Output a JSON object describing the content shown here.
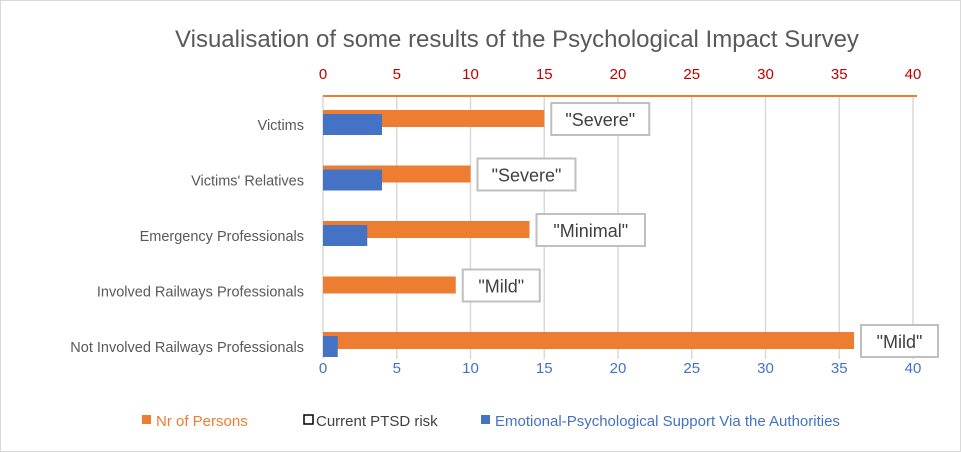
{
  "chart_data": {
    "type": "bar",
    "orientation": "horizontal",
    "title": "Visualisation of some results of the Psychological Impact Survey",
    "categories": [
      "Victims",
      "Victims' Relatives",
      "Emergency Professionals",
      "Involved Railways Professionals",
      "Not Involved Railways Professionals"
    ],
    "series": [
      {
        "name": "Nr of Persons",
        "color": "#ED7D31",
        "axis": "top",
        "values": [
          15,
          10,
          14,
          9,
          36
        ]
      },
      {
        "name": "Current PTSD risk",
        "color": "#000000",
        "legend_style": "outline",
        "labels": [
          "\"Severe\"",
          "\"Severe\"",
          "\"Minimal\"",
          "\"Mild\"",
          "\"Mild\""
        ]
      },
      {
        "name": "Emotional-Psychological Support Via the Authorities",
        "color": "#4472C4",
        "axis": "bottom",
        "values": [
          4,
          4,
          3,
          0,
          1
        ]
      }
    ],
    "top_axis": {
      "range": [
        0,
        40
      ],
      "ticks": [
        "0",
        "5",
        "10",
        "15",
        "20",
        "25",
        "30",
        "35",
        "40"
      ],
      "color": "#C00000"
    },
    "bottom_axis": {
      "range": [
        0,
        40
      ],
      "ticks": [
        "0",
        "5",
        "10",
        "15",
        "20",
        "25",
        "30",
        "35",
        "40"
      ],
      "color": "#4472C4"
    },
    "grid": true,
    "legend_position": "bottom"
  }
}
